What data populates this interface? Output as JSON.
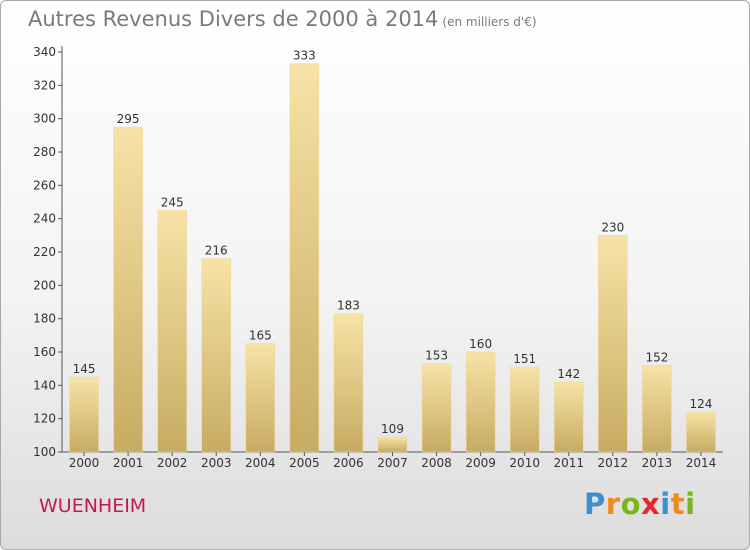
{
  "header": {
    "title": "Autres Revenus Divers de 2000 à 2014",
    "subtitle": "(en milliers d'€)"
  },
  "commune": "WUENHEIM",
  "brand": {
    "letters": [
      "P",
      "r",
      "o",
      "x",
      "i",
      "t",
      "i"
    ],
    "colors": [
      "#3b8ed0",
      "#f08a1c",
      "#7ab51d",
      "#e8262b",
      "#3b8ed0",
      "#f08a1c",
      "#7ab51d"
    ]
  },
  "colors": {
    "bar_light": "#f7e3a6",
    "bar_dark": "#c8ab62",
    "axis": "#555555",
    "grid": "#cccccc"
  },
  "chart_data": {
    "type": "bar",
    "title": "Autres Revenus Divers de 2000 à 2014",
    "subtitle": "(en milliers d'€)",
    "categories": [
      "2000",
      "2001",
      "2002",
      "2003",
      "2004",
      "2005",
      "2006",
      "2007",
      "2008",
      "2009",
      "2010",
      "2011",
      "2012",
      "2013",
      "2014"
    ],
    "values": [
      145,
      295,
      245,
      216,
      165,
      333,
      183,
      109,
      153,
      160,
      151,
      142,
      230,
      152,
      124
    ],
    "ylim": [
      100,
      340
    ],
    "yticks": [
      100,
      120,
      140,
      160,
      180,
      200,
      220,
      240,
      260,
      280,
      300,
      320,
      340
    ],
    "grid": false
  }
}
